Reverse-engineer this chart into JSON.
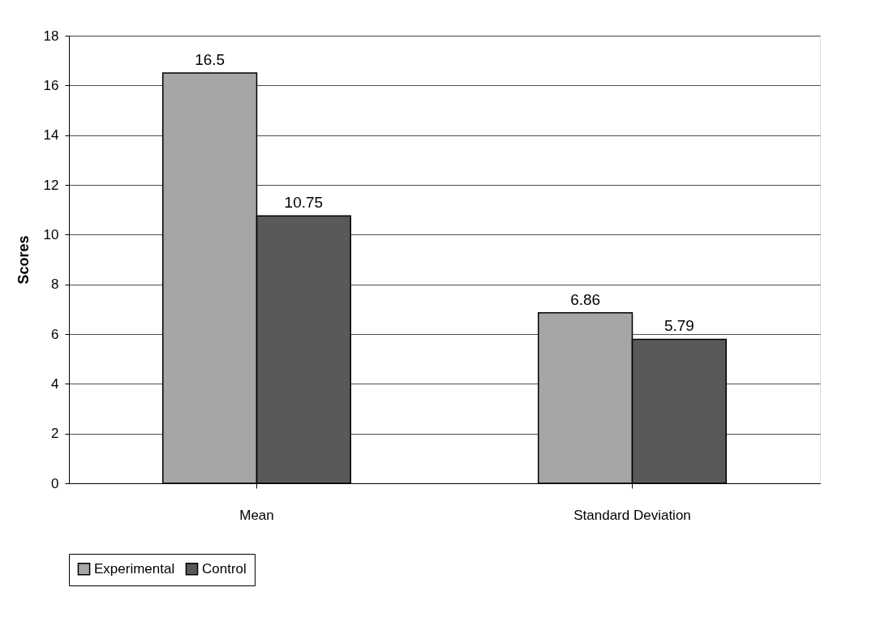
{
  "chart_data": {
    "type": "bar",
    "ylabel": "Scores",
    "categories": [
      "Mean",
      "Standard Deviation"
    ],
    "series": [
      {
        "name": "Experimental",
        "color": "#a6a6a6",
        "values": [
          16.5,
          6.86
        ]
      },
      {
        "name": "Control",
        "color": "#595959",
        "values": [
          10.75,
          5.79
        ]
      }
    ],
    "ylim": [
      0,
      18
    ],
    "yticks": [
      0,
      2,
      4,
      6,
      8,
      10,
      12,
      14,
      16,
      18
    ],
    "grid": "y",
    "legend": "bottom",
    "data_labels": true
  }
}
